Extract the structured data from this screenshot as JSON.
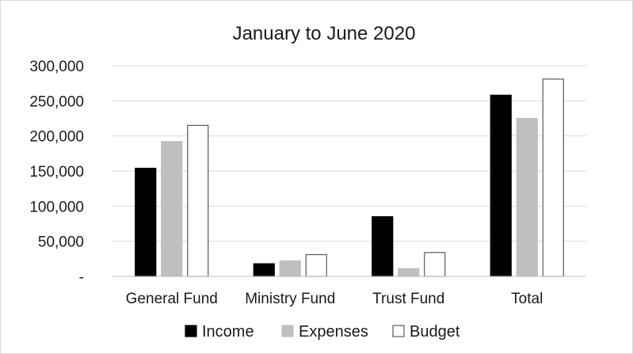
{
  "chart_data": {
    "type": "bar",
    "title": "January to June 2020",
    "xlabel": "",
    "ylabel": "",
    "categories": [
      "General Fund",
      "Ministry Fund",
      "Trust Fund",
      "Total"
    ],
    "series": [
      {
        "name": "Income",
        "values": [
          154000,
          18000,
          85000,
          258000
        ],
        "fill": "#000000",
        "stroke": "#000000"
      },
      {
        "name": "Expenses",
        "values": [
          192000,
          22000,
          11000,
          225000
        ],
        "fill": "#bfbfbf",
        "stroke": "#bfbfbf"
      },
      {
        "name": "Budget",
        "values": [
          215000,
          31000,
          34000,
          281000
        ],
        "fill": "#ffffff",
        "stroke": "#595959"
      }
    ],
    "ylim": [
      0,
      300000
    ],
    "yticks": [
      0,
      50000,
      100000,
      150000,
      200000,
      250000,
      300000
    ],
    "ytick_labels": [
      "-",
      "50,000",
      "100,000",
      "150,000",
      "200,000",
      "250,000",
      "300,000"
    ],
    "grid": true,
    "legend_position": "bottom"
  }
}
